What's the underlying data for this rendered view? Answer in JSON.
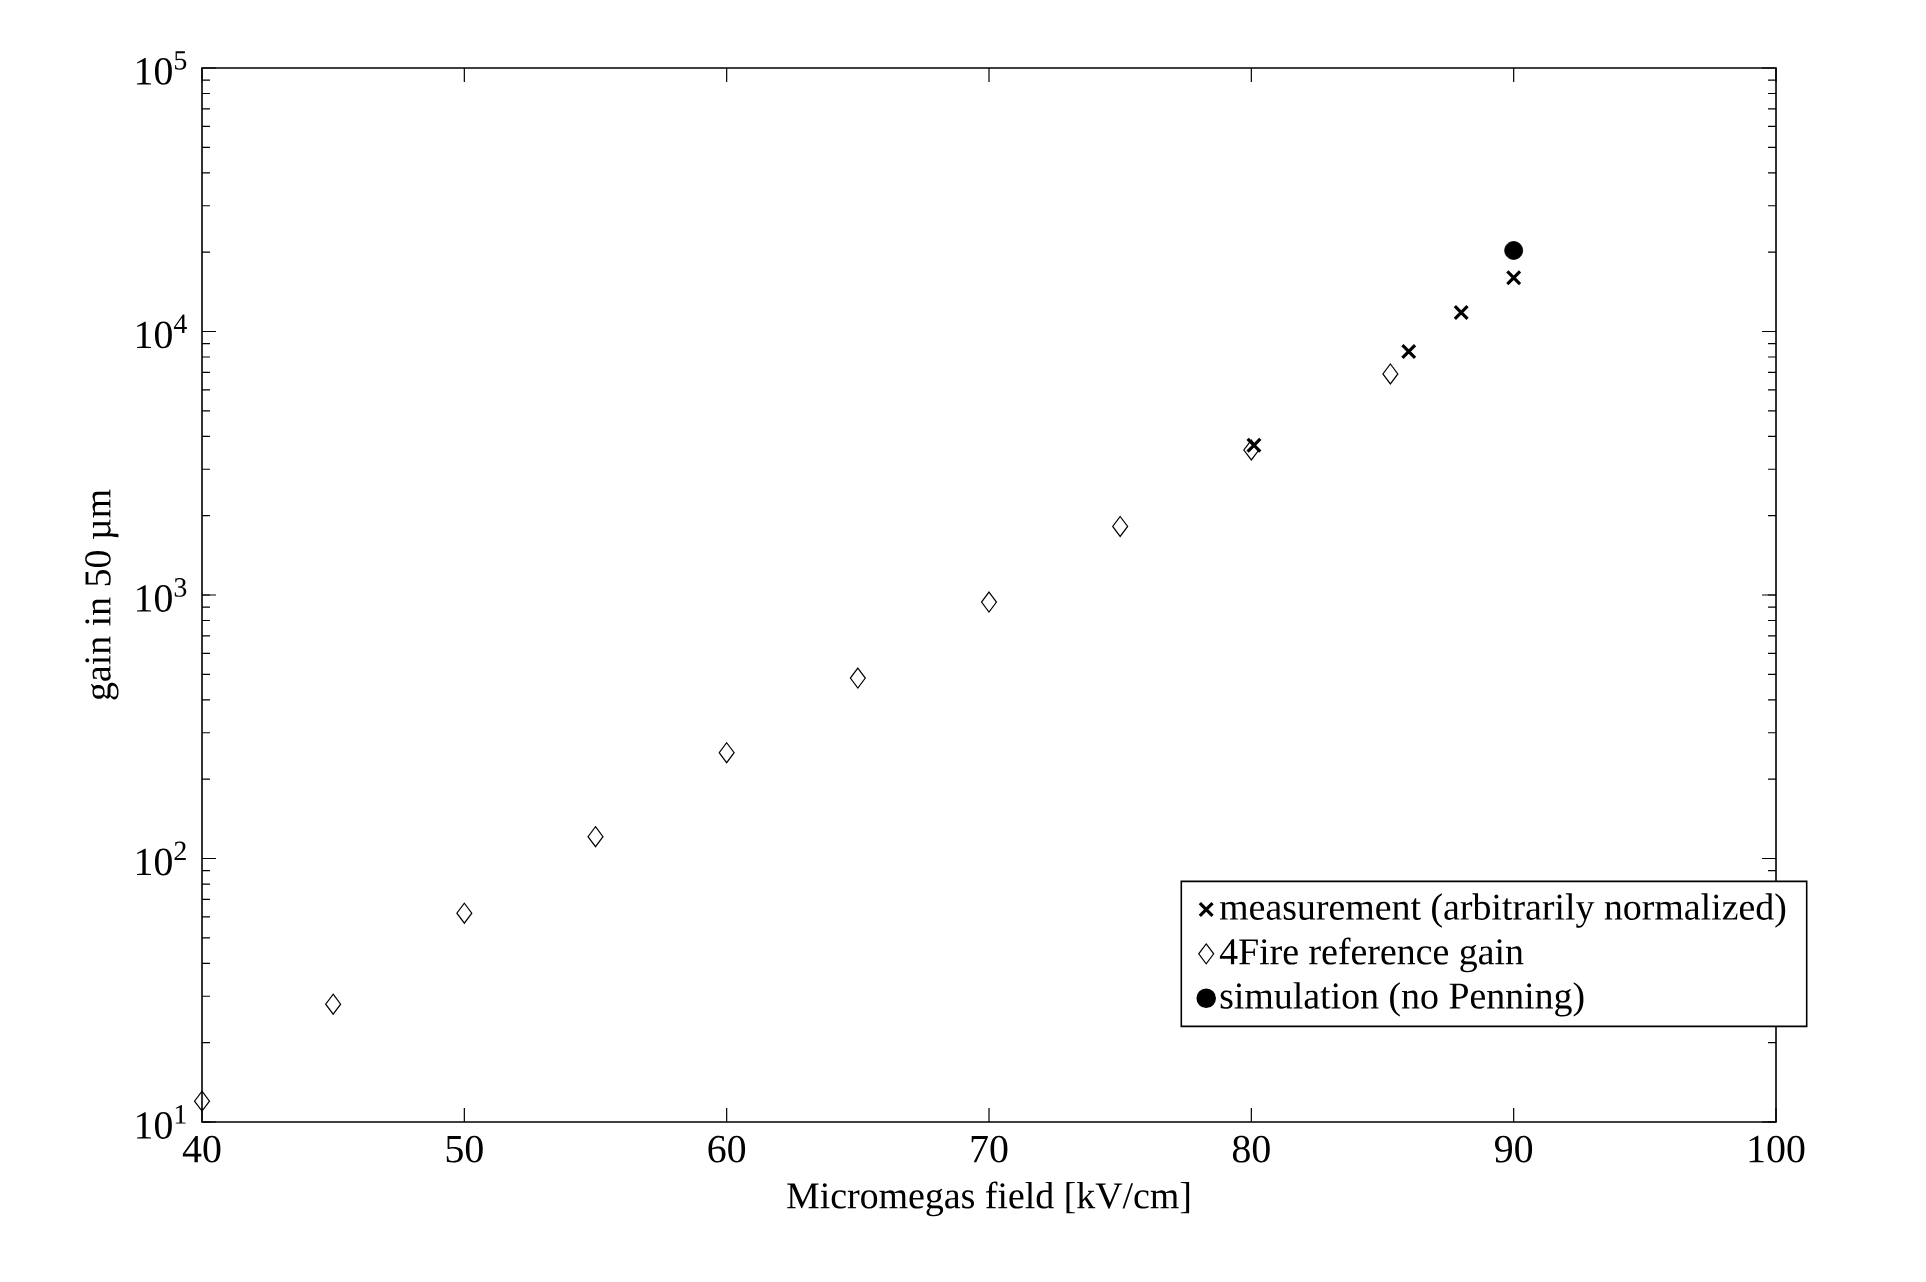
{
  "chart_data": {
    "type": "scatter",
    "xlabel": "Micromegas field [kV/cm]",
    "ylabel": "gain in 50 µm",
    "log": "y",
    "xlim": [
      40,
      100
    ],
    "xticks": [
      40,
      50,
      60,
      70,
      80,
      90,
      100
    ],
    "ylim": [
      10,
      100000
    ],
    "yticks": [
      {
        "value": 10,
        "label": "10$^{1}$"
      },
      {
        "value": 100,
        "label": "10$^{2}$"
      },
      {
        "value": 1000,
        "label": "10$^{3}$"
      },
      {
        "value": 10000,
        "label": "10$^{4}$"
      },
      {
        "value": 100000,
        "label": "10$^{5}$"
      }
    ],
    "grid": false,
    "legend": "bottom right",
    "series": [
      {
        "name": "measurement (arbitrarily normalized)",
        "color": "#000000",
        "marker": "cross",
        "x": [
          80.1,
          86,
          88,
          90
        ],
        "values": [
          3700,
          8400,
          11800,
          16000
        ]
      },
      {
        "name": "4Fire reference gain",
        "color": "#000000",
        "marker": "diamond",
        "x": [
          40,
          45,
          50,
          55,
          60,
          65,
          70,
          75,
          80,
          85.3
        ],
        "values": [
          12,
          28,
          62,
          121,
          252,
          484,
          940,
          1820,
          3550,
          6900
        ]
      },
      {
        "name": "simulation (no Penning)",
        "color": "#000000",
        "marker": "circle",
        "x": [
          90
        ],
        "values": [
          20300
        ]
      }
    ]
  }
}
